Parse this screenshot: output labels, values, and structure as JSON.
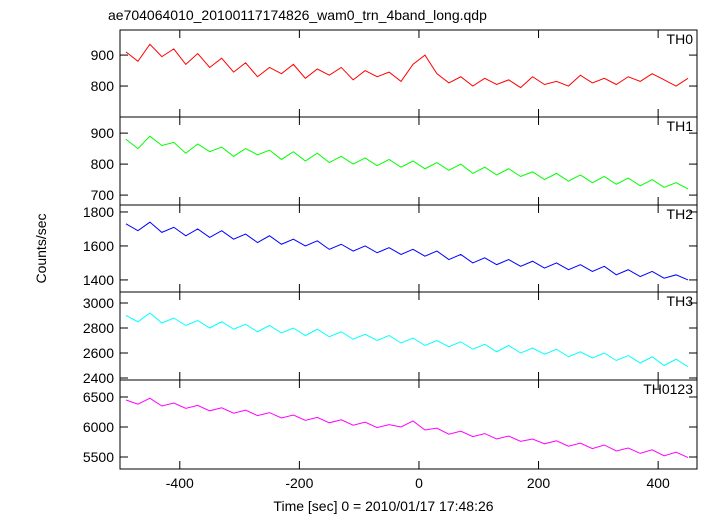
{
  "chart_data": [
    {
      "type": "line",
      "title": "ae704064010_20100117174826_wam0_trn_4band_long.qdp",
      "x": [
        -490,
        -470,
        -450,
        -430,
        -410,
        -390,
        -370,
        -350,
        -330,
        -310,
        -290,
        -270,
        -250,
        -230,
        -210,
        -190,
        -170,
        -150,
        -130,
        -110,
        -90,
        -70,
        -50,
        -30,
        -10,
        10,
        30,
        50,
        70,
        90,
        110,
        130,
        150,
        170,
        190,
        210,
        230,
        250,
        270,
        290,
        310,
        330,
        350,
        370,
        390,
        410,
        430,
        450
      ],
      "series": [
        {
          "name": "TH0",
          "color": "#ff0000",
          "values": [
            910,
            880,
            935,
            895,
            920,
            870,
            905,
            860,
            890,
            845,
            875,
            830,
            860,
            840,
            870,
            825,
            855,
            835,
            860,
            820,
            850,
            830,
            845,
            815,
            870,
            900,
            840,
            810,
            830,
            800,
            825,
            805,
            820,
            795,
            830,
            805,
            815,
            800,
            835,
            810,
            825,
            805,
            830,
            815,
            840,
            820,
            800,
            825
          ]
        }
      ],
      "xlim": [
        -500,
        465
      ],
      "ylim": [
        700,
        981
      ],
      "yticks": [
        800,
        900
      ]
    },
    {
      "type": "line",
      "x": [
        -490,
        -470,
        -450,
        -430,
        -410,
        -390,
        -370,
        -350,
        -330,
        -310,
        -290,
        -270,
        -250,
        -230,
        -210,
        -190,
        -170,
        -150,
        -130,
        -110,
        -90,
        -70,
        -50,
        -30,
        -10,
        10,
        30,
        50,
        70,
        90,
        110,
        130,
        150,
        170,
        190,
        210,
        230,
        250,
        270,
        290,
        310,
        330,
        350,
        370,
        390,
        410,
        430,
        450
      ],
      "series": [
        {
          "name": "TH1",
          "color": "#00ff00",
          "values": [
            880,
            850,
            890,
            860,
            870,
            835,
            865,
            840,
            855,
            825,
            850,
            830,
            845,
            815,
            840,
            810,
            835,
            805,
            825,
            800,
            820,
            795,
            815,
            790,
            810,
            785,
            805,
            780,
            800,
            770,
            790,
            765,
            785,
            760,
            775,
            750,
            770,
            745,
            765,
            740,
            760,
            735,
            755,
            730,
            750,
            725,
            740,
            720
          ]
        }
      ],
      "xlim": [
        -500,
        465
      ],
      "ylim": [
        668,
        952
      ],
      "yticks": [
        700,
        800,
        900
      ]
    },
    {
      "type": "line",
      "ylabel": "Counts/sec",
      "x": [
        -490,
        -470,
        -450,
        -430,
        -410,
        -390,
        -370,
        -350,
        -330,
        -310,
        -290,
        -270,
        -250,
        -230,
        -210,
        -190,
        -170,
        -150,
        -130,
        -110,
        -90,
        -70,
        -50,
        -30,
        -10,
        10,
        30,
        50,
        70,
        90,
        110,
        130,
        150,
        170,
        190,
        210,
        230,
        250,
        270,
        290,
        310,
        330,
        350,
        370,
        390,
        410,
        430,
        450
      ],
      "series": [
        {
          "name": "TH2",
          "color": "#0000ff",
          "values": [
            1730,
            1690,
            1740,
            1680,
            1710,
            1660,
            1700,
            1650,
            1690,
            1640,
            1670,
            1620,
            1660,
            1610,
            1640,
            1600,
            1630,
            1580,
            1610,
            1570,
            1600,
            1560,
            1590,
            1550,
            1580,
            1540,
            1570,
            1520,
            1550,
            1500,
            1530,
            1490,
            1520,
            1480,
            1510,
            1470,
            1500,
            1460,
            1490,
            1450,
            1480,
            1430,
            1460,
            1420,
            1450,
            1410,
            1430,
            1400
          ]
        }
      ],
      "xlim": [
        -500,
        465
      ],
      "ylim": [
        1329,
        1841
      ],
      "yticks": [
        1400,
        1600,
        1800
      ]
    },
    {
      "type": "line",
      "x": [
        -490,
        -470,
        -450,
        -430,
        -410,
        -390,
        -370,
        -350,
        -330,
        -310,
        -290,
        -270,
        -250,
        -230,
        -210,
        -190,
        -170,
        -150,
        -130,
        -110,
        -90,
        -70,
        -50,
        -30,
        -10,
        10,
        30,
        50,
        70,
        90,
        110,
        130,
        150,
        170,
        190,
        210,
        230,
        250,
        270,
        290,
        310,
        330,
        350,
        370,
        390,
        410,
        430,
        450
      ],
      "series": [
        {
          "name": "TH3",
          "color": "#00ffff",
          "values": [
            2900,
            2850,
            2920,
            2840,
            2880,
            2820,
            2860,
            2800,
            2850,
            2790,
            2830,
            2770,
            2820,
            2760,
            2800,
            2740,
            2790,
            2730,
            2770,
            2710,
            2750,
            2700,
            2740,
            2680,
            2720,
            2660,
            2700,
            2650,
            2690,
            2630,
            2670,
            2610,
            2660,
            2600,
            2640,
            2590,
            2630,
            2570,
            2610,
            2560,
            2600,
            2540,
            2580,
            2520,
            2570,
            2500,
            2550,
            2490
          ]
        }
      ],
      "xlim": [
        -500,
        465
      ],
      "ylim": [
        2384,
        3088
      ],
      "yticks": [
        2400,
        2600,
        2800,
        3000
      ]
    },
    {
      "type": "line",
      "xlabel": "Time [sec] 0 = 2010/01/17 17:48:26",
      "x": [
        -490,
        -470,
        -450,
        -430,
        -410,
        -390,
        -370,
        -350,
        -330,
        -310,
        -290,
        -270,
        -250,
        -230,
        -210,
        -190,
        -170,
        -150,
        -130,
        -110,
        -90,
        -70,
        -50,
        -30,
        -10,
        10,
        30,
        50,
        70,
        90,
        110,
        130,
        150,
        170,
        190,
        210,
        230,
        250,
        270,
        290,
        310,
        330,
        350,
        370,
        390,
        410,
        430,
        450
      ],
      "series": [
        {
          "name": "TH0123",
          "color": "#ff00ff",
          "values": [
            6450,
            6380,
            6480,
            6350,
            6400,
            6310,
            6360,
            6270,
            6320,
            6230,
            6280,
            6190,
            6240,
            6150,
            6200,
            6110,
            6160,
            6070,
            6120,
            6030,
            6080,
            5990,
            6040,
            6000,
            6100,
            5950,
            5980,
            5880,
            5930,
            5840,
            5890,
            5800,
            5850,
            5760,
            5800,
            5720,
            5770,
            5680,
            5730,
            5640,
            5700,
            5600,
            5650,
            5560,
            5620,
            5520,
            5580,
            5490
          ]
        }
      ],
      "xlim": [
        -500,
        465
      ],
      "ylim": [
        5300,
        6783
      ],
      "yticks": [
        5500,
        6000,
        6500
      ],
      "xticks": [
        -400,
        -200,
        0,
        200,
        400
      ]
    }
  ]
}
